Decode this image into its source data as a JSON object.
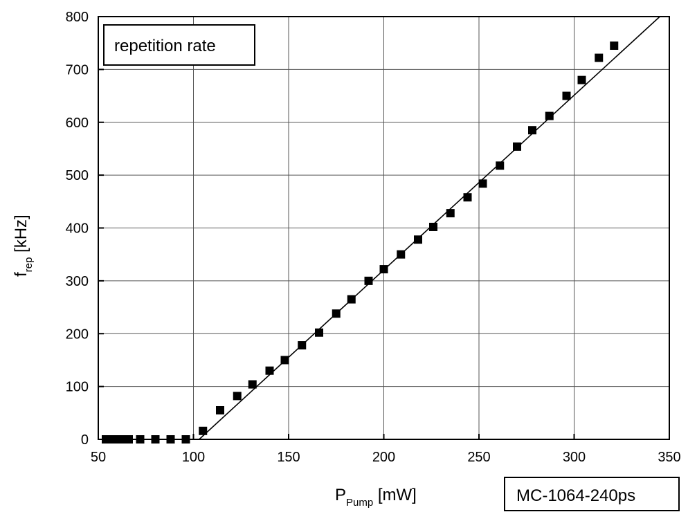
{
  "chart_data": {
    "type": "scatter",
    "annotation": "repetition rate",
    "model_label": "MC-1064-240ps",
    "xlabel": {
      "main": "P",
      "sub": "Pump",
      "unit": " [mW]"
    },
    "ylabel": {
      "main": "f",
      "sub": "rep",
      "unit": " [kHz]"
    },
    "xlim": [
      50,
      350
    ],
    "ylim": [
      0,
      800
    ],
    "xticks": [
      "50",
      "100",
      "150",
      "200",
      "250",
      "300",
      "350"
    ],
    "yticks": [
      "0",
      "100",
      "200",
      "300",
      "400",
      "500",
      "600",
      "700",
      "800"
    ],
    "grid": true,
    "series": [
      {
        "marker": "square",
        "color": "#000000",
        "x": [
          54,
          58,
          62,
          66,
          72,
          80,
          88,
          96,
          105,
          114,
          123,
          131,
          140,
          148,
          157,
          166,
          175,
          183,
          192,
          200,
          209,
          218,
          226,
          235,
          244,
          252,
          261,
          270,
          278,
          287,
          296,
          304,
          313,
          321
        ],
        "y": [
          0,
          0,
          0,
          0,
          0,
          0,
          0,
          0,
          16,
          55,
          82,
          104,
          130,
          150,
          178,
          202,
          238,
          265,
          300,
          322,
          350,
          378,
          402,
          428,
          458,
          484,
          518,
          554,
          585,
          612,
          650,
          680,
          722,
          745
        ]
      }
    ],
    "fit_line": {
      "x": [
        103,
        345
      ],
      "y": [
        0,
        800
      ],
      "color": "#000000"
    }
  }
}
